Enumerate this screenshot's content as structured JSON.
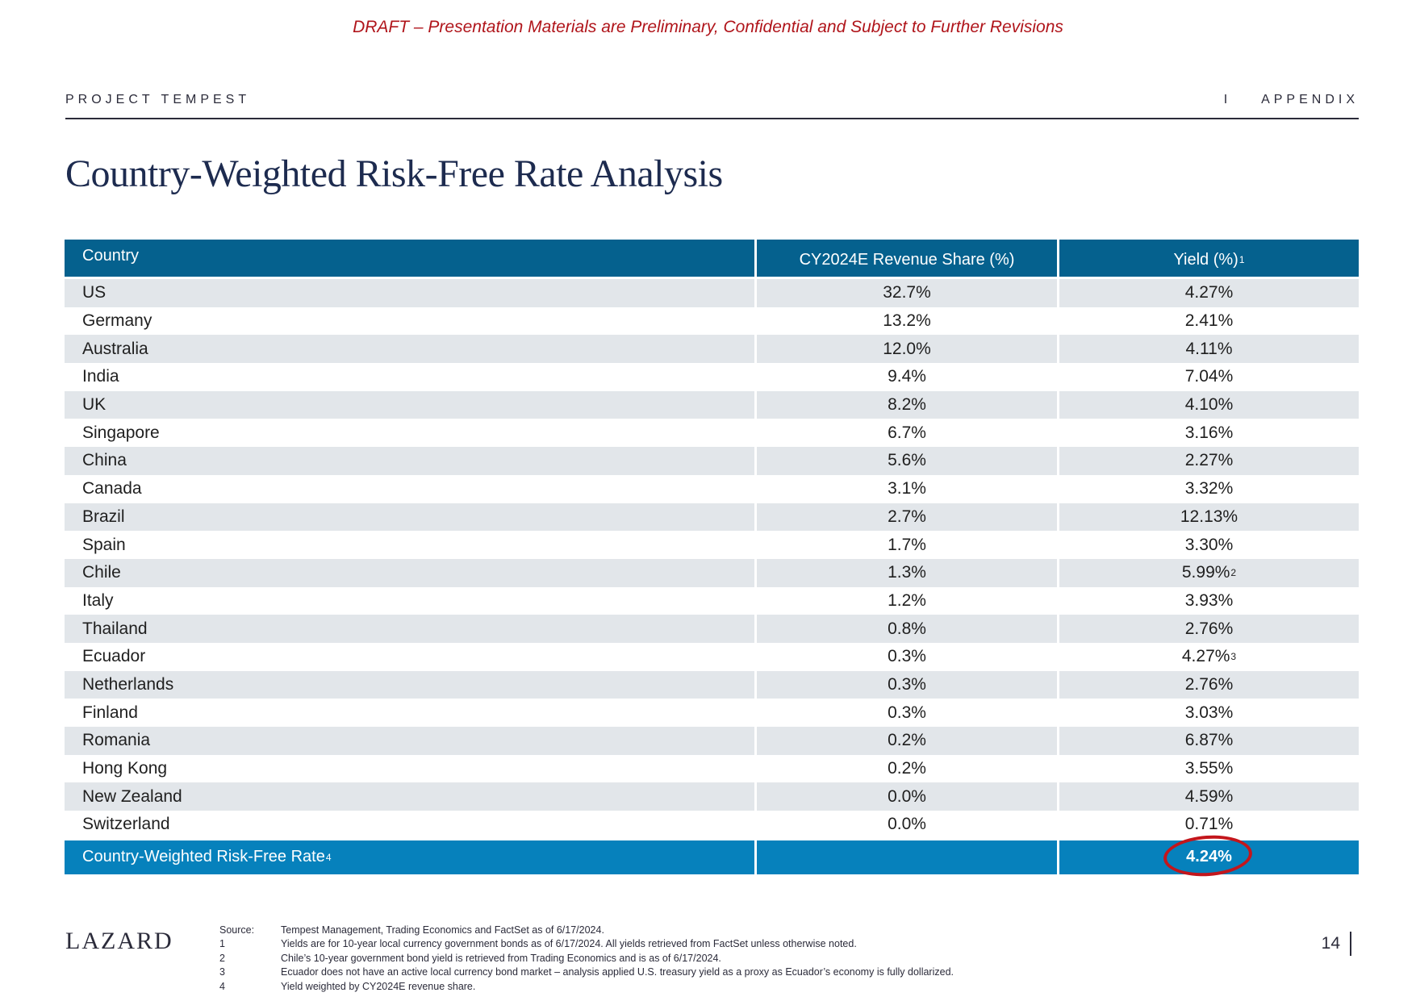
{
  "banner": "DRAFT – Presentation Materials are Preliminary, Confidential and Subject to Further Revisions",
  "header": {
    "project": "PROJECT TEMPEST",
    "section": "I    APPENDIX"
  },
  "title": "Country-Weighted Risk-Free Rate Analysis",
  "table": {
    "columns": {
      "country": "Country",
      "share": "CY2024E Revenue Share (%)",
      "yield": "Yield (%)",
      "yield_note": "1"
    },
    "rows": [
      {
        "country": "US",
        "share": "32.7%",
        "yield": "4.27%",
        "note": ""
      },
      {
        "country": "Germany",
        "share": "13.2%",
        "yield": "2.41%",
        "note": ""
      },
      {
        "country": "Australia",
        "share": "12.0%",
        "yield": "4.11%",
        "note": ""
      },
      {
        "country": "India",
        "share": "9.4%",
        "yield": "7.04%",
        "note": ""
      },
      {
        "country": "UK",
        "share": "8.2%",
        "yield": "4.10%",
        "note": ""
      },
      {
        "country": "Singapore",
        "share": "6.7%",
        "yield": "3.16%",
        "note": ""
      },
      {
        "country": "China",
        "share": "5.6%",
        "yield": "2.27%",
        "note": ""
      },
      {
        "country": "Canada",
        "share": "3.1%",
        "yield": "3.32%",
        "note": ""
      },
      {
        "country": "Brazil",
        "share": "2.7%",
        "yield": "12.13%",
        "note": ""
      },
      {
        "country": "Spain",
        "share": "1.7%",
        "yield": "3.30%",
        "note": ""
      },
      {
        "country": "Chile",
        "share": "1.3%",
        "yield": "5.99%",
        "note": "2"
      },
      {
        "country": "Italy",
        "share": "1.2%",
        "yield": "3.93%",
        "note": ""
      },
      {
        "country": "Thailand",
        "share": "0.8%",
        "yield": "2.76%",
        "note": ""
      },
      {
        "country": "Ecuador",
        "share": "0.3%",
        "yield": "4.27%",
        "note": "3"
      },
      {
        "country": "Netherlands",
        "share": "0.3%",
        "yield": "2.76%",
        "note": ""
      },
      {
        "country": "Finland",
        "share": "0.3%",
        "yield": "3.03%",
        "note": ""
      },
      {
        "country": "Romania",
        "share": "0.2%",
        "yield": "6.87%",
        "note": ""
      },
      {
        "country": "Hong Kong",
        "share": "0.2%",
        "yield": "3.55%",
        "note": ""
      },
      {
        "country": "New Zealand",
        "share": "0.0%",
        "yield": "4.59%",
        "note": ""
      },
      {
        "country": "Switzerland",
        "share": "0.0%",
        "yield": "0.71%",
        "note": ""
      }
    ],
    "total": {
      "label": "Country-Weighted Risk-Free Rate",
      "note": "4",
      "share": "",
      "yield": "4.24%"
    }
  },
  "footer": {
    "logo": "LAZARD",
    "footnotes": [
      {
        "key": "Source:",
        "text": "Tempest Management, Trading Economics and FactSet as of 6/17/2024."
      },
      {
        "key": "1",
        "text": "Yields are for 10-year local currency government bonds as of 6/17/2024. All yields retrieved from FactSet unless otherwise noted."
      },
      {
        "key": "2",
        "text": "Chile’s 10-year government bond yield is retrieved from Trading Economics and is as of 6/17/2024."
      },
      {
        "key": "3",
        "text": "Ecuador does not have an active local currency bond market – analysis applied U.S. treasury yield as a proxy as Ecuador’s economy is fully dollarized."
      },
      {
        "key": "4",
        "text": "Yield weighted by CY2024E revenue share."
      }
    ],
    "page_number": "14"
  },
  "colors": {
    "header_blue": "#05618e",
    "total_blue": "#0681bc",
    "stripe": "#e2e6ea",
    "draft_red": "#b0151b",
    "circle_red": "#c3161c"
  }
}
